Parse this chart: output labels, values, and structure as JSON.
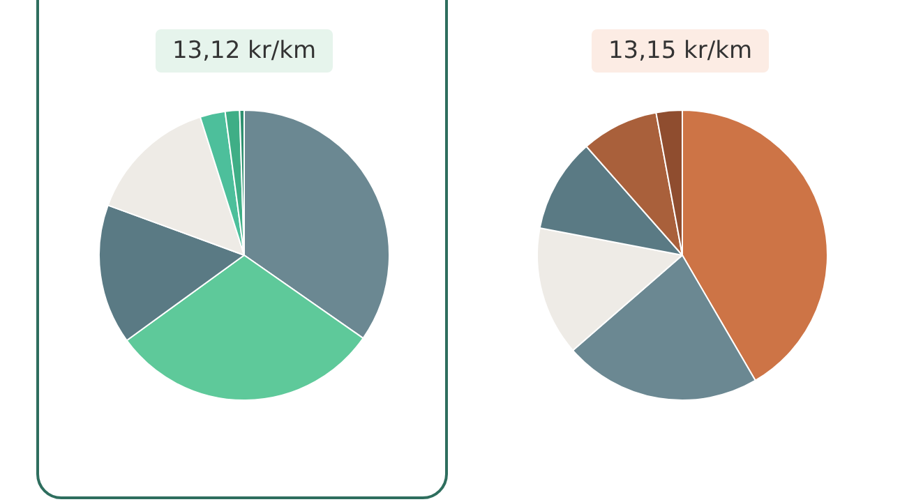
{
  "chart_data": [
    {
      "type": "pie",
      "subtitle": "13,12 kr/km",
      "categories": [
        null,
        null,
        null,
        null,
        null,
        null,
        null
      ],
      "values": [
        34.7,
        30.3,
        15.6,
        14.5,
        2.8,
        1.6,
        0.5
      ],
      "colors": [
        "#6b8892",
        "#5ec99a",
        "#5a7a84",
        "#eeebe6",
        "#4dbf9b",
        "#3fae86",
        "#2f9070"
      ]
    },
    {
      "type": "pie",
      "subtitle": "13,15 kr/km",
      "categories": [
        null,
        null,
        null,
        null,
        null,
        null
      ],
      "values": [
        41.6,
        22.0,
        14.4,
        10.5,
        8.6,
        2.9
      ],
      "colors": [
        "#cd7446",
        "#6b8892",
        "#eeebe6",
        "#5a7a84",
        "#a9603b",
        "#8f4d2f"
      ]
    }
  ]
}
